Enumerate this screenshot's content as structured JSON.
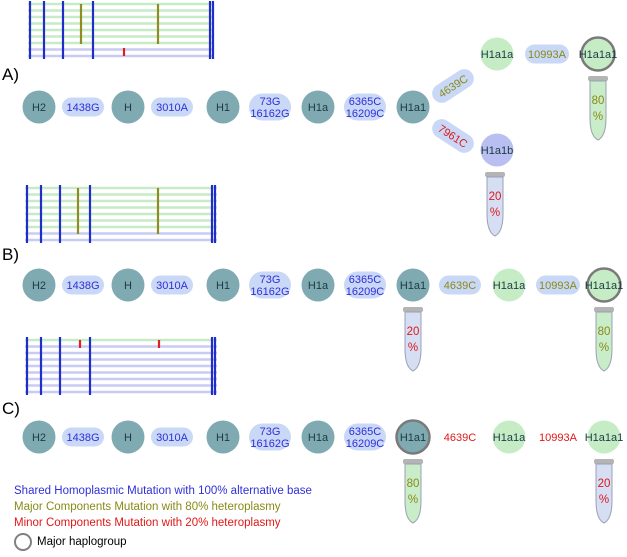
{
  "colors": {
    "hap_node": "#7faab2",
    "mut_pill": "#c9d8f6",
    "green_node": "#c6ecc6",
    "blue_text": "#2f2fd8",
    "olive_text": "#8a8a18",
    "red_text": "#e01818",
    "dark_text": "#1b3b44",
    "bar_bg_green": "#c7ebc7",
    "bar_bg_lav": "#c8ccf4",
    "blue_line": "#1f2ec8",
    "olive_line": "#8d8d24",
    "red_line": "#e02020"
  },
  "panels": [
    {
      "letter": "A)",
      "chain": [
        {
          "kind": "hap",
          "label": "H2"
        },
        {
          "kind": "mut",
          "label": "1438G",
          "color": "blue"
        },
        {
          "kind": "hap",
          "label": "H"
        },
        {
          "kind": "mut",
          "label": "3010A",
          "color": "blue"
        },
        {
          "kind": "hap",
          "label": "H1"
        },
        {
          "kind": "mut",
          "label": "73G\n16162G",
          "color": "blue"
        },
        {
          "kind": "hap",
          "label": "H1a"
        },
        {
          "kind": "mut",
          "label": "6365C\n16209C",
          "color": "blue"
        },
        {
          "kind": "hap",
          "label": "H1a1"
        }
      ],
      "upper_branch": {
        "mutation": "4639C",
        "node": "H1a1a",
        "mutation2": "10993A",
        "final": "H1a1a1",
        "tube_pct": "80",
        "tube_sign": "%"
      },
      "lower_branch": {
        "mutation": "7961C",
        "node": "H1a1b",
        "tube_pct": "20",
        "tube_sign": "%"
      }
    },
    {
      "letter": "B)",
      "chain": [
        {
          "kind": "hap",
          "label": "H2"
        },
        {
          "kind": "mut",
          "label": "1438G",
          "color": "blue"
        },
        {
          "kind": "hap",
          "label": "H"
        },
        {
          "kind": "mut",
          "label": "3010A",
          "color": "blue"
        },
        {
          "kind": "hap",
          "label": "H1"
        },
        {
          "kind": "mut",
          "label": "73G\n16162G",
          "color": "blue"
        },
        {
          "kind": "hap",
          "label": "H1a"
        },
        {
          "kind": "mut",
          "label": "6365C\n16209C",
          "color": "blue"
        },
        {
          "kind": "hap",
          "label": "H1a1"
        },
        {
          "kind": "mut",
          "label": "4639C",
          "color": "olive"
        },
        {
          "kind": "green",
          "label": "H1a1a"
        },
        {
          "kind": "mut",
          "label": "10993A",
          "color": "olive"
        },
        {
          "kind": "final",
          "label": "H1a1a1"
        }
      ],
      "tubes": [
        {
          "at": "H1a1",
          "pct": "20",
          "sign": "%",
          "color": "red"
        },
        {
          "at": "H1a1a1",
          "pct": "80",
          "sign": "%",
          "color": "olive"
        }
      ]
    },
    {
      "letter": "C)",
      "chain": [
        {
          "kind": "hap",
          "label": "H2"
        },
        {
          "kind": "mut",
          "label": "1438G",
          "color": "blue"
        },
        {
          "kind": "hap",
          "label": "H"
        },
        {
          "kind": "mut",
          "label": "3010A",
          "color": "blue"
        },
        {
          "kind": "hap",
          "label": "H1"
        },
        {
          "kind": "mut",
          "label": "73G\n16162G",
          "color": "blue"
        },
        {
          "kind": "hap",
          "label": "H1a"
        },
        {
          "kind": "mut",
          "label": "6365C\n16209C",
          "color": "blue"
        },
        {
          "kind": "hapfinal",
          "label": "H1a1"
        },
        {
          "kind": "text",
          "label": "4639C",
          "color": "red"
        },
        {
          "kind": "greentext",
          "label": "H1a1a"
        },
        {
          "kind": "text",
          "label": "10993A",
          "color": "red"
        },
        {
          "kind": "greentext",
          "label": "H1a1a1"
        }
      ],
      "tubes": [
        {
          "at": "H1a1",
          "pct": "80",
          "sign": "%",
          "color": "olive"
        },
        {
          "at": "H1a1a1",
          "pct": "20",
          "sign": "%",
          "color": "red"
        }
      ]
    }
  ],
  "legend": {
    "shared": "Shared Homoplasmic Mutation with 100% alternative base",
    "major": "Major Components Mutation with 80% heteroplasmy",
    "minor": "Minor Components Mutation with 20% heteroplasmy",
    "haplogroup": "Major haplogroup"
  }
}
